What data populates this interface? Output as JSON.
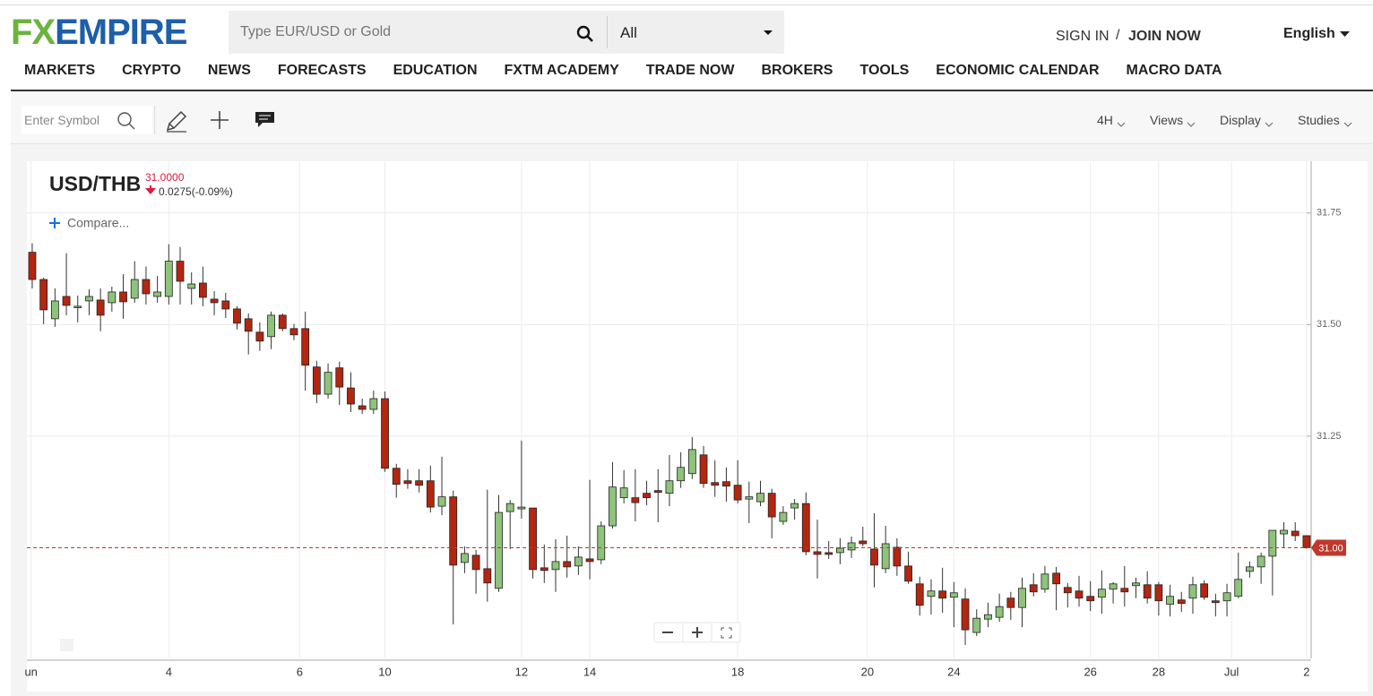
{
  "header": {
    "logo_fx": "FX",
    "logo_empire": "EMPIRE",
    "search_placeholder": "Type EUR/USD or Gold",
    "search_scope": "All",
    "sign_in": "SIGN IN",
    "separator": "/",
    "join_now": "JOIN NOW",
    "language": "English"
  },
  "nav": {
    "items": [
      "MARKETS",
      "CRYPTO",
      "NEWS",
      "FORECASTS",
      "EDUCATION",
      "FXTM ACADEMY",
      "TRADE NOW",
      "BROKERS",
      "TOOLS",
      "ECONOMIC CALENDAR",
      "MACRO DATA"
    ]
  },
  "toolbar": {
    "symbol_placeholder": "Enter Symbol",
    "menus": [
      "4H",
      "Views",
      "Display",
      "Studies"
    ]
  },
  "quote": {
    "symbol": "USD/THB",
    "price": "31.0000",
    "change": "0.0275(-0.09%)",
    "compare": "Compare..."
  },
  "chart_data": {
    "type": "candlestick",
    "x": [
      0,
      1,
      2,
      3,
      4,
      5,
      6,
      7,
      8,
      9,
      10,
      11,
      12,
      13,
      14,
      15,
      16,
      17,
      18,
      19,
      20,
      21,
      22,
      23,
      24,
      25,
      26,
      27,
      28,
      29,
      30,
      31,
      32,
      33,
      34,
      35,
      36,
      37,
      38,
      39,
      40,
      41,
      42,
      43,
      44,
      45,
      46,
      47,
      48,
      49,
      50,
      51,
      52,
      53,
      54,
      55,
      56,
      57,
      58,
      59,
      60,
      61,
      62,
      63,
      64,
      65,
      66,
      67,
      68,
      69,
      70,
      71,
      72,
      73,
      74,
      75,
      76,
      77,
      78,
      79,
      80,
      81,
      82,
      83,
      84,
      85,
      86,
      87,
      88,
      89,
      90,
      91,
      92,
      93,
      94,
      95,
      96,
      97,
      98,
      99,
      100,
      101,
      102,
      103,
      104,
      105,
      106,
      107,
      108,
      109,
      110,
      111,
      112
    ],
    "open": [
      31.662,
      31.601,
      31.513,
      31.563,
      31.539,
      31.553,
      31.555,
      31.549,
      31.573,
      31.559,
      31.601,
      31.563,
      31.563,
      31.642,
      31.581,
      31.593,
      31.557,
      31.553,
      31.535,
      31.513,
      31.483,
      31.473,
      31.521,
      31.491,
      31.491,
      31.405,
      31.344,
      31.403,
      31.358,
      31.318,
      31.31,
      31.334,
      31.178,
      31.15,
      31.15,
      31.15,
      31.093,
      31.114,
      30.967,
      30.983,
      30.953,
      30.909,
      31.081,
      31.087,
      31.089,
      30.955,
      30.951,
      30.969,
      30.959,
      30.975,
      30.973,
      31.049,
      31.112,
      31.112,
      31.122,
      31.128,
      31.122,
      31.15,
      31.166,
      31.208,
      31.146,
      31.148,
      31.14,
      31.109,
      31.103,
      31.122,
      31.059,
      31.089,
      31.099,
      30.991,
      30.989,
      30.989,
      30.995,
      31.015,
      30.997,
      30.953,
      31.001,
      30.959,
      30.919,
      30.891,
      30.903,
      30.889,
      30.885,
      30.81,
      30.84,
      30.844,
      30.887,
      30.866,
      30.917,
      30.907,
      30.943,
      30.911,
      30.903,
      30.891,
      30.889,
      30.907,
      30.909,
      30.915,
      30.917,
      30.917,
      30.873,
      30.883,
      30.887,
      30.919,
      30.881,
      30.881,
      30.891,
      30.947,
      30.957,
      30.981,
      31.031,
      31.037,
      31.027
    ],
    "high": [
      31.682,
      31.605,
      31.581,
      31.66,
      31.565,
      31.579,
      31.581,
      31.585,
      31.613,
      31.642,
      31.63,
      31.609,
      31.68,
      31.674,
      31.617,
      31.63,
      31.575,
      31.571,
      31.541,
      31.525,
      31.505,
      31.529,
      31.525,
      31.501,
      31.529,
      31.419,
      31.413,
      31.417,
      31.393,
      31.334,
      31.352,
      31.35,
      31.188,
      31.176,
      31.176,
      31.184,
      31.204,
      31.128,
      31.003,
      30.995,
      31.13,
      31.118,
      31.107,
      31.24,
      31.089,
      31.007,
      31.019,
      31.027,
      31.003,
      31.152,
      31.059,
      31.192,
      31.174,
      31.176,
      31.15,
      31.176,
      31.208,
      31.214,
      31.248,
      31.228,
      31.196,
      31.18,
      31.196,
      31.148,
      31.15,
      31.132,
      31.093,
      31.109,
      31.124,
      31.063,
      31.015,
      31.021,
      31.025,
      31.047,
      31.077,
      31.049,
      31.021,
      30.991,
      30.935,
      30.929,
      30.955,
      30.923,
      30.909,
      30.862,
      30.877,
      30.897,
      30.901,
      30.933,
      30.943,
      30.959,
      30.957,
      30.921,
      30.937,
      30.925,
      30.949,
      30.923,
      30.959,
      30.933,
      30.947,
      30.923,
      30.917,
      30.901,
      30.935,
      30.927,
      30.897,
      30.919,
      30.989,
      30.969,
      30.989,
      31.039,
      31.057,
      31.057,
      31.027
    ],
    "low": [
      31.581,
      31.501,
      31.495,
      31.521,
      31.505,
      31.521,
      31.485,
      31.529,
      31.513,
      31.549,
      31.545,
      31.549,
      31.545,
      31.545,
      31.545,
      31.541,
      31.521,
      31.515,
      31.489,
      31.433,
      31.441,
      31.445,
      31.485,
      31.465,
      31.352,
      31.324,
      31.334,
      31.32,
      31.304,
      31.3,
      31.3,
      31.17,
      31.112,
      31.132,
      31.124,
      31.079,
      31.073,
      30.828,
      30.943,
      30.897,
      30.879,
      30.901,
      30.997,
      31.065,
      30.931,
      30.921,
      30.901,
      30.933,
      30.939,
      30.929,
      30.963,
      31.043,
      31.099,
      31.059,
      31.095,
      31.057,
      31.093,
      31.134,
      31.154,
      31.134,
      31.114,
      31.103,
      31.099,
      31.055,
      31.093,
      31.021,
      31.051,
      31.063,
      30.983,
      30.931,
      30.975,
      30.963,
      30.977,
      31.003,
      30.911,
      30.943,
      30.937,
      30.919,
      30.848,
      30.85,
      30.854,
      30.822,
      30.782,
      30.802,
      30.822,
      30.834,
      30.838,
      30.822,
      30.891,
      30.899,
      30.86,
      30.866,
      30.868,
      30.858,
      30.852,
      30.875,
      30.868,
      30.887,
      30.875,
      30.848,
      30.846,
      30.856,
      30.852,
      30.883,
      30.846,
      30.846,
      30.887,
      30.933,
      30.919,
      30.893,
      30.999,
      31.015,
      30.998
    ],
    "close": [
      31.601,
      31.533,
      31.553,
      31.543,
      31.541,
      31.563,
      31.521,
      31.573,
      31.551,
      31.601,
      31.569,
      31.573,
      31.642,
      31.597,
      31.591,
      31.561,
      31.549,
      31.535,
      31.503,
      31.485,
      31.463,
      31.521,
      31.491,
      31.477,
      31.409,
      31.344,
      31.393,
      31.36,
      31.322,
      31.31,
      31.334,
      31.178,
      31.142,
      31.144,
      31.14,
      31.091,
      31.114,
      30.961,
      30.987,
      30.951,
      30.921,
      31.079,
      31.099,
      31.091,
      30.951,
      30.949,
      30.969,
      30.957,
      30.979,
      30.969,
      31.049,
      31.136,
      31.134,
      31.101,
      31.112,
      31.124,
      31.15,
      31.18,
      31.22,
      31.144,
      31.14,
      31.138,
      31.107,
      31.114,
      31.122,
      31.069,
      31.079,
      31.099,
      30.991,
      30.985,
      30.985,
      30.999,
      31.011,
      31.009,
      30.961,
      31.009,
      30.959,
      30.925,
      30.871,
      30.903,
      30.887,
      30.899,
      30.816,
      30.842,
      30.85,
      30.868,
      30.866,
      30.909,
      30.901,
      30.941,
      30.919,
      30.899,
      30.887,
      30.881,
      30.907,
      30.919,
      30.901,
      30.921,
      30.887,
      30.881,
      30.891,
      30.875,
      30.917,
      30.889,
      30.877,
      30.899,
      30.929,
      30.957,
      30.981,
      31.039,
      31.039,
      31.027,
      31.0
    ],
    "up_color": "#8dc37a",
    "down_color": "#b3260f",
    "xlim": [
      -0.47,
      112.4
    ],
    "ylim": [
      30.752,
      31.866
    ],
    "xticks": [
      {
        "value": -0.1,
        "label": "un"
      },
      {
        "value": 12,
        "label": "4"
      },
      {
        "value": 23.5,
        "label": "6"
      },
      {
        "value": 31,
        "label": "10"
      },
      {
        "value": 43,
        "label": "12"
      },
      {
        "value": 49,
        "label": "14"
      },
      {
        "value": 62,
        "label": "18"
      },
      {
        "value": 73.4,
        "label": "20"
      },
      {
        "value": 81,
        "label": "24"
      },
      {
        "value": 93,
        "label": "26"
      },
      {
        "value": 99,
        "label": "28"
      },
      {
        "value": 105.4,
        "label": "Jul"
      },
      {
        "value": 112,
        "label": "2"
      }
    ],
    "yticks": [
      31.75,
      {
        "value": 31.5,
        "label": "31.50"
      },
      31.25
    ],
    "grid": true,
    "last_price": {
      "value": 31,
      "label": "31.00"
    },
    "last_price_color": "#c0392b"
  }
}
